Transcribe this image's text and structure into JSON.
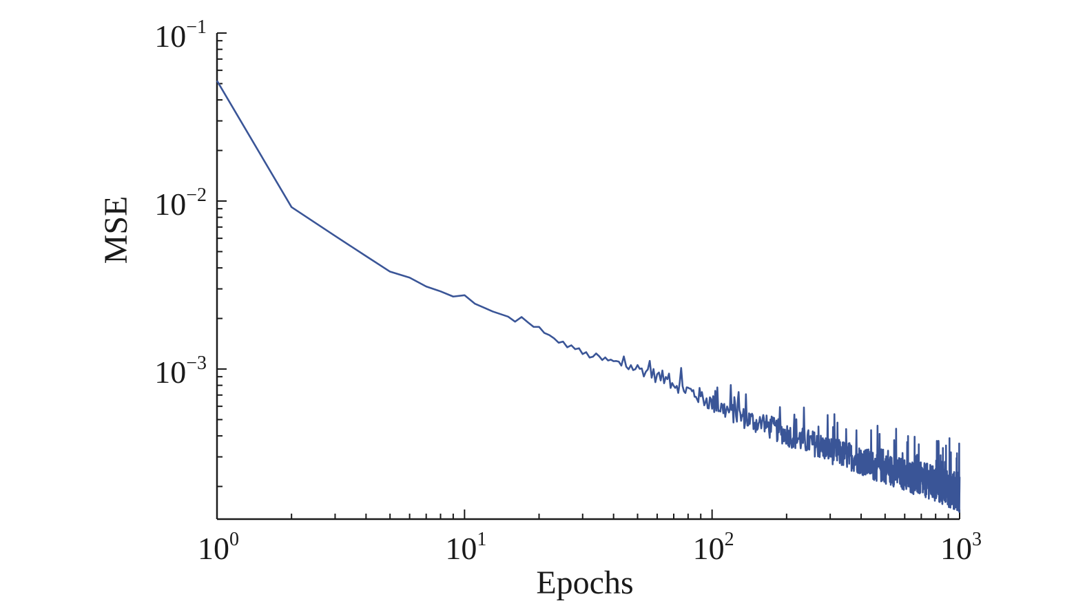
{
  "chart_data": {
    "type": "line",
    "title": "",
    "xlabel": "Epochs",
    "ylabel": "MSE",
    "xscale": "log",
    "yscale": "log",
    "xlim": [
      1,
      1000
    ],
    "ylim": [
      0.00013,
      0.1
    ],
    "grid": false,
    "legend": "none",
    "x_ticks": [
      {
        "base": "10",
        "exp": "0"
      },
      {
        "base": "10",
        "exp": "1"
      },
      {
        "base": "10",
        "exp": "2"
      },
      {
        "base": "10",
        "exp": "3"
      }
    ],
    "y_ticks": [
      {
        "base": "10",
        "exp": "−1"
      },
      {
        "base": "10",
        "exp": "−2"
      },
      {
        "base": "10",
        "exp": "−3"
      }
    ],
    "series": [
      {
        "color": "#3a5597",
        "x": [
          1,
          2,
          3,
          4,
          5,
          6,
          7,
          8,
          9,
          10,
          11,
          13,
          15,
          16,
          17,
          19,
          20,
          21,
          23,
          25,
          28,
          30,
          33,
          36,
          40,
          45,
          50,
          55,
          58,
          60,
          63,
          65,
          70,
          75,
          80,
          90,
          100,
          110,
          120,
          130,
          150,
          170,
          200,
          230,
          260,
          300,
          350,
          400,
          450,
          500,
          550,
          600,
          650,
          700,
          750,
          800,
          850,
          900,
          950,
          1000
        ],
        "values": [
          0.052,
          0.0092,
          0.0062,
          0.0047,
          0.0038,
          0.0035,
          0.0031,
          0.0029,
          0.0027,
          0.00275,
          0.00245,
          0.0022,
          0.00205,
          0.0019,
          0.00195,
          0.0018,
          0.00175,
          0.0016,
          0.0015,
          0.0014,
          0.00132,
          0.00122,
          0.00118,
          0.00112,
          0.00108,
          0.00102,
          0.00098,
          0.00094,
          0.0009,
          0.00088,
          0.00086,
          0.00084,
          0.0008,
          0.00076,
          0.00072,
          0.00066,
          0.0006,
          0.00056,
          0.00053,
          0.0005,
          0.00046,
          0.00043,
          0.00039,
          0.00036,
          0.00034,
          0.00031,
          0.00029,
          0.00027,
          0.00025,
          0.00024,
          0.00023,
          0.00022,
          0.00021,
          0.000205,
          0.0002,
          0.00019,
          0.000185,
          0.00018,
          0.000175,
          0.00017
        ],
        "noise_amplitude": [
          0,
          0,
          0,
          0,
          0,
          0,
          0,
          0,
          0,
          0,
          0,
          0,
          0,
          0.02,
          0.03,
          0.04,
          0.04,
          0.05,
          0.05,
          0.06,
          0.06,
          0.07,
          0.08,
          0.09,
          0.1,
          0.12,
          0.13,
          0.14,
          0.15,
          0.15,
          0.16,
          0.16,
          0.17,
          0.17,
          0.18,
          0.19,
          0.2,
          0.21,
          0.22,
          0.23,
          0.24,
          0.25,
          0.26,
          0.27,
          0.28,
          0.29,
          0.3,
          0.31,
          0.32,
          0.33,
          0.34,
          0.35,
          0.36,
          0.37,
          0.38,
          0.39,
          0.4,
          0.41,
          0.42,
          0.43
        ]
      }
    ]
  }
}
